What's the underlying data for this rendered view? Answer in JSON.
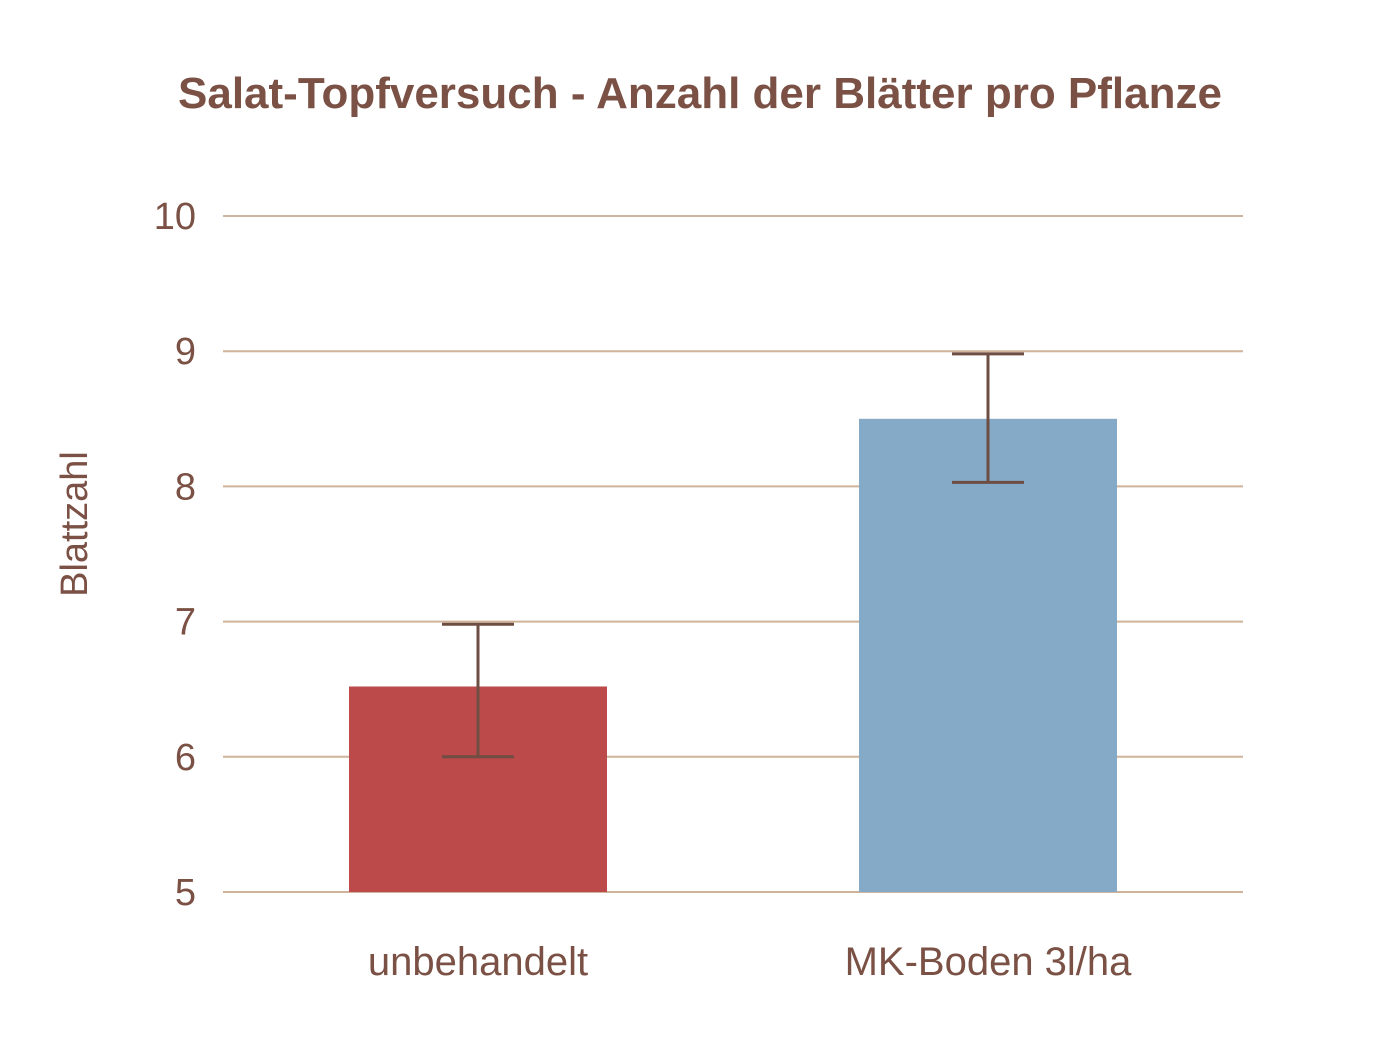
{
  "colors": {
    "text": "#7a5144",
    "gridline": "#cfb39a",
    "error_bar": "#6e4d43",
    "bar_unbehandelt": "#bd4a4b",
    "bar_mk_boden": "#84aac8",
    "background": "#ffffff"
  },
  "chart_data": {
    "type": "bar",
    "title": "Salat-Topfversuch - Anzahl der Blätter pro Pflanze",
    "xlabel": "",
    "ylabel": "Blattzahl",
    "categories": [
      "unbehandelt",
      "MK-Boden 3l/ha"
    ],
    "values": [
      6.52,
      8.5
    ],
    "error_low": [
      6.0,
      8.03
    ],
    "error_high": [
      6.98,
      8.98
    ],
    "ylim": [
      5,
      10
    ],
    "yticks": [
      "5",
      "6",
      "7",
      "8",
      "9",
      "10"
    ],
    "grid": true,
    "legend": "none"
  }
}
